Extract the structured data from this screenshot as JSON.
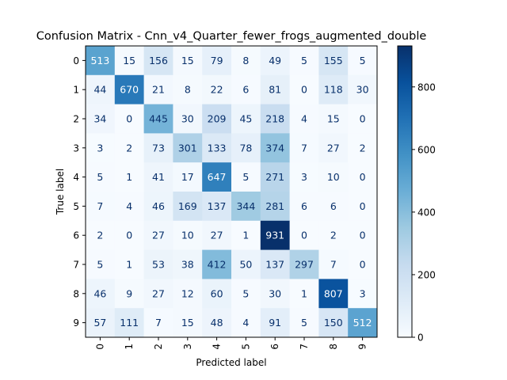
{
  "chart_data": {
    "type": "heatmap",
    "title": "Confusion Matrix - Cnn_v4_Quarter_fewer_frogs_augmented_double",
    "xlabel": "Predicted label",
    "ylabel": "True label",
    "x_tick_labels": [
      "0",
      "1",
      "2",
      "3",
      "4",
      "5",
      "6",
      "7",
      "8",
      "9"
    ],
    "y_tick_labels": [
      "0",
      "1",
      "2",
      "3",
      "4",
      "5",
      "6",
      "7",
      "8",
      "9"
    ],
    "matrix": [
      [
        513,
        15,
        156,
        15,
        79,
        8,
        49,
        5,
        155,
        5
      ],
      [
        44,
        670,
        21,
        8,
        22,
        6,
        81,
        0,
        118,
        30
      ],
      [
        34,
        0,
        445,
        30,
        209,
        45,
        218,
        4,
        15,
        0
      ],
      [
        3,
        2,
        73,
        301,
        133,
        78,
        374,
        7,
        27,
        2
      ],
      [
        5,
        1,
        41,
        17,
        647,
        5,
        271,
        3,
        10,
        0
      ],
      [
        7,
        4,
        46,
        169,
        137,
        344,
        281,
        6,
        6,
        0
      ],
      [
        2,
        0,
        27,
        10,
        27,
        1,
        931,
        0,
        2,
        0
      ],
      [
        5,
        1,
        53,
        38,
        412,
        50,
        137,
        297,
        7,
        0
      ],
      [
        46,
        9,
        27,
        12,
        60,
        5,
        30,
        1,
        807,
        3
      ],
      [
        57,
        111,
        7,
        15,
        48,
        4,
        91,
        5,
        150,
        512
      ]
    ],
    "colormap": "Blues",
    "value_range": [
      0,
      931
    ],
    "colorbar_ticks": [
      0,
      200,
      400,
      600,
      800
    ]
  }
}
